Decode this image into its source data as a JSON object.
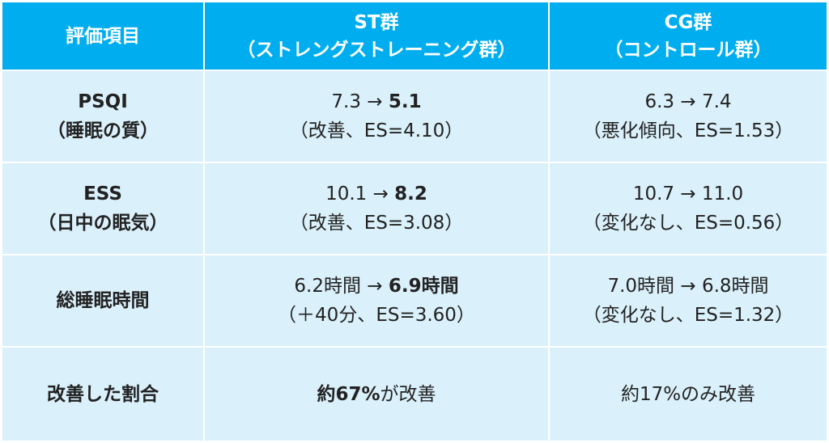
{
  "header": {
    "item": "評価項目",
    "st_line1": "ST群",
    "st_line2": "（ストレングストレーニング群）",
    "cg_line1": "CG群",
    "cg_line2": "（コントロール群）"
  },
  "rows": [
    {
      "label_line1": "PSQI",
      "label_line2": "（睡眠の質）",
      "st_before": "7.3 → ",
      "st_after": "5.1",
      "st_note": "（改善、ES=4.10）",
      "cg_line1": "6.3 → 7.4",
      "cg_note": "（悪化傾向、ES=1.53）"
    },
    {
      "label_line1": "ESS",
      "label_line2": "（日中の眠気）",
      "st_before": "10.1 → ",
      "st_after": "8.2",
      "st_note": "（改善、ES=3.08）",
      "cg_line1": "10.7 → 11.0",
      "cg_note": "（変化なし、ES=0.56）"
    },
    {
      "label_line1": "総睡眠時間",
      "st_before": "6.2時間 → ",
      "st_after": "6.9時間",
      "st_note": "（＋40分、ES=3.60）",
      "cg_line1": "7.0時間 → 6.8時間",
      "cg_note": "（変化なし、ES=1.32）"
    },
    {
      "label_line1": "改善した割合",
      "st_bold": "約67%",
      "st_rest": "が改善",
      "cg_line1": "約17%のみ改善"
    }
  ],
  "colors": {
    "header_bg": "#00aeef",
    "body_bg": "#daf0fa",
    "grid_lines": "#ffffff"
  }
}
